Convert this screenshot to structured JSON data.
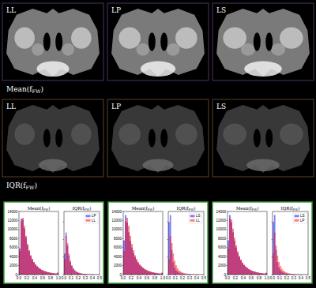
{
  "image_panels": [
    {
      "labels": [
        "LL",
        "LP",
        "LS"
      ],
      "caption": {
        "text": "Mean(f",
        "sub": "FW",
        "tail": ")"
      }
    },
    {
      "labels": [
        "LL",
        "LP",
        "LS"
      ],
      "caption": {
        "text": "IQR(f",
        "sub": "FW",
        "tail": ")"
      }
    }
  ],
  "chart_data": [
    {
      "type": "histogram",
      "title": {
        "text": "Mean(f",
        "sub": "FW",
        "tail": ")"
      },
      "bins": [
        0,
        0.04,
        0.08,
        0.12,
        0.16,
        0.2,
        0.24,
        0.28,
        0.32,
        0.36,
        0.4,
        0.44,
        0.48,
        0.52,
        0.56,
        0.6,
        0.64,
        0.68,
        0.72,
        0.76,
        0.8,
        0.84,
        0.88,
        0.92,
        0.96,
        1
      ],
      "series": [
        {
          "name": "LP",
          "color": "#0000ff",
          "values": [
            5800,
            12400,
            12200,
            10200,
            8200,
            6500,
            5200,
            4150,
            3350,
            2700,
            2200,
            1820,
            1500,
            1250,
            1040,
            870,
            730,
            620,
            520,
            440,
            370,
            320,
            270,
            230,
            400
          ]
        },
        {
          "name": "LL",
          "color": "#ff0000",
          "values": [
            5200,
            11800,
            12600,
            10800,
            8600,
            6800,
            5400,
            4300,
            3500,
            2800,
            2300,
            1900,
            1550,
            1300,
            1080,
            900,
            760,
            640,
            540,
            460,
            390,
            330,
            280,
            240,
            420
          ]
        }
      ],
      "xlim": [
        0,
        1
      ],
      "xticks": [
        {
          "value": 0,
          "label": "0.0"
        },
        {
          "value": 0.2,
          "label": "0.2"
        },
        {
          "value": 0.4,
          "label": "0.4"
        },
        {
          "value": 0.6,
          "label": "0.6"
        },
        {
          "value": 0.8,
          "label": "0.8"
        },
        {
          "value": 1,
          "label": "1.0"
        }
      ],
      "ylim": [
        0,
        14000
      ],
      "yticks": [
        0,
        2000,
        4000,
        6000,
        8000,
        10000,
        12000,
        14000
      ]
    },
    {
      "type": "histogram",
      "title": {
        "text": "IQR(f",
        "sub": "FW",
        "tail": ")"
      },
      "bins": [
        0,
        0.02,
        0.04,
        0.06,
        0.08,
        0.1,
        0.12,
        0.14,
        0.16,
        0.18,
        0.2,
        0.22,
        0.24,
        0.26,
        0.28,
        0.3,
        0.32,
        0.34,
        0.36,
        0.38,
        0.4,
        0.42,
        0.44,
        0.46,
        0.48,
        0.5
      ],
      "series": [
        {
          "name": "LP",
          "color": "#0000ff",
          "values": [
            12000,
            24000,
            16500,
            10800,
            7200,
            4900,
            3400,
            2400,
            1750,
            1300,
            980,
            750,
            580,
            450,
            360,
            285,
            225,
            180,
            145,
            115,
            95,
            76,
            62,
            52,
            43
          ]
        },
        {
          "name": "LL",
          "color": "#ff0000",
          "values": [
            9000,
            22000,
            18000,
            12000,
            8000,
            5400,
            3700,
            2600,
            1900,
            1400,
            1050,
            800,
            620,
            480,
            380,
            300,
            240,
            190,
            150,
            120,
            100,
            80,
            65,
            55,
            45
          ]
        }
      ],
      "xlim": [
        0,
        0.5
      ],
      "xticks": [
        {
          "value": 0,
          "label": "0.0"
        },
        {
          "value": 0.1,
          "label": "0.1"
        },
        {
          "value": 0.2,
          "label": "0.2"
        },
        {
          "value": 0.3,
          "label": "0.3"
        },
        {
          "value": 0.4,
          "label": "0.4"
        },
        {
          "value": 0.5,
          "label": "0.5"
        }
      ],
      "ylim": [
        0,
        36000
      ],
      "yticks": [
        0,
        10000,
        20000,
        30000
      ],
      "tick_labels": "x",
      "legend": "upper right"
    },
    {
      "type": "histogram",
      "title": {
        "text": "Mean(f",
        "sub": "FW",
        "tail": ")"
      },
      "bins": [
        0,
        0.04,
        0.08,
        0.12,
        0.16,
        0.2,
        0.24,
        0.28,
        0.32,
        0.36,
        0.4,
        0.44,
        0.48,
        0.52,
        0.56,
        0.6,
        0.64,
        0.68,
        0.72,
        0.76,
        0.8,
        0.84,
        0.88,
        0.92,
        0.96,
        1
      ],
      "series": [
        {
          "name": "LS",
          "color": "#0000ff",
          "values": [
            7600,
            13200,
            11600,
            9400,
            7500,
            6000,
            4800,
            3900,
            3150,
            2550,
            2100,
            1750,
            1450,
            1200,
            1000,
            840,
            710,
            600,
            500,
            430,
            360,
            310,
            260,
            220,
            380
          ]
        },
        {
          "name": "LL",
          "color": "#ff0000",
          "values": [
            5200,
            11800,
            12600,
            10800,
            8600,
            6800,
            5400,
            4300,
            3500,
            2800,
            2300,
            1900,
            1550,
            1300,
            1080,
            900,
            760,
            640,
            540,
            460,
            390,
            330,
            280,
            240,
            420
          ]
        }
      ],
      "xlim": [
        0,
        1
      ],
      "xticks": [
        {
          "value": 0,
          "label": "0.0"
        },
        {
          "value": 0.2,
          "label": "0.2"
        },
        {
          "value": 0.4,
          "label": "0.4"
        },
        {
          "value": 0.6,
          "label": "0.6"
        },
        {
          "value": 0.8,
          "label": "0.8"
        },
        {
          "value": 1,
          "label": "1.0"
        }
      ],
      "ylim": [
        0,
        14000
      ],
      "yticks": [
        0,
        2000,
        4000,
        6000,
        8000,
        10000,
        12000,
        14000
      ]
    },
    {
      "type": "histogram",
      "title": {
        "text": "IQR(f",
        "sub": "FW",
        "tail": ")"
      },
      "bins": [
        0,
        0.02,
        0.04,
        0.06,
        0.08,
        0.1,
        0.12,
        0.14,
        0.16,
        0.18,
        0.2,
        0.22,
        0.24,
        0.26,
        0.28,
        0.3,
        0.32,
        0.34,
        0.36,
        0.38,
        0.4,
        0.42,
        0.44,
        0.46,
        0.48,
        0.5
      ],
      "series": [
        {
          "name": "LS",
          "color": "#0000ff",
          "values": [
            30000,
            34000,
            14000,
            7000,
            4000,
            2500,
            1700,
            1200,
            850,
            620,
            460,
            350,
            270,
            210,
            160,
            130,
            100,
            80,
            65,
            52,
            42,
            34,
            28,
            22,
            18
          ]
        },
        {
          "name": "LL",
          "color": "#ff0000",
          "values": [
            9000,
            22000,
            18000,
            12000,
            8000,
            5400,
            3700,
            2600,
            1900,
            1400,
            1050,
            800,
            620,
            480,
            380,
            300,
            240,
            190,
            150,
            120,
            100,
            80,
            65,
            55,
            45
          ]
        }
      ],
      "xlim": [
        0,
        0.5
      ],
      "xticks": [
        {
          "value": 0,
          "label": "0.0"
        },
        {
          "value": 0.1,
          "label": "0.1"
        },
        {
          "value": 0.2,
          "label": "0.2"
        },
        {
          "value": 0.3,
          "label": "0.3"
        },
        {
          "value": 0.4,
          "label": "0.4"
        },
        {
          "value": 0.5,
          "label": "0.5"
        }
      ],
      "ylim": [
        0,
        36000
      ],
      "yticks": [
        0,
        10000,
        20000,
        30000
      ],
      "tick_labels": "x",
      "legend": "upper right"
    },
    {
      "type": "histogram",
      "title": {
        "text": "Mean(f",
        "sub": "FW",
        "tail": ")"
      },
      "bins": [
        0,
        0.04,
        0.08,
        0.12,
        0.16,
        0.2,
        0.24,
        0.28,
        0.32,
        0.36,
        0.4,
        0.44,
        0.48,
        0.52,
        0.56,
        0.6,
        0.64,
        0.68,
        0.72,
        0.76,
        0.8,
        0.84,
        0.88,
        0.92,
        0.96,
        1
      ],
      "series": [
        {
          "name": "LS",
          "color": "#0000ff",
          "values": [
            7600,
            13200,
            11600,
            9400,
            7500,
            6000,
            4800,
            3900,
            3150,
            2550,
            2100,
            1750,
            1450,
            1200,
            1000,
            840,
            710,
            600,
            500,
            430,
            360,
            310,
            260,
            220,
            380
          ]
        },
        {
          "name": "LP",
          "color": "#ff0000",
          "values": [
            5800,
            12400,
            12200,
            10200,
            8200,
            6500,
            5200,
            4150,
            3350,
            2700,
            2200,
            1820,
            1500,
            1250,
            1040,
            870,
            730,
            620,
            520,
            440,
            370,
            320,
            270,
            230,
            400
          ]
        }
      ],
      "xlim": [
        0,
        1
      ],
      "xticks": [
        {
          "value": 0,
          "label": "0.0"
        },
        {
          "value": 0.2,
          "label": "0.2"
        },
        {
          "value": 0.4,
          "label": "0.4"
        },
        {
          "value": 0.6,
          "label": "0.6"
        },
        {
          "value": 0.8,
          "label": "0.8"
        },
        {
          "value": 1,
          "label": "1.0"
        }
      ],
      "ylim": [
        0,
        14000
      ],
      "yticks": [
        0,
        2000,
        4000,
        6000,
        8000,
        10000,
        12000,
        14000
      ]
    },
    {
      "type": "histogram",
      "title": {
        "text": "IQR(f",
        "sub": "FW",
        "tail": ")"
      },
      "bins": [
        0,
        0.02,
        0.04,
        0.06,
        0.08,
        0.1,
        0.12,
        0.14,
        0.16,
        0.18,
        0.2,
        0.22,
        0.24,
        0.26,
        0.28,
        0.3,
        0.32,
        0.34,
        0.36,
        0.38,
        0.4,
        0.42,
        0.44,
        0.46,
        0.48,
        0.5
      ],
      "series": [
        {
          "name": "LS",
          "color": "#0000ff",
          "values": [
            30000,
            34000,
            14000,
            7000,
            4000,
            2500,
            1700,
            1200,
            850,
            620,
            460,
            350,
            270,
            210,
            160,
            130,
            100,
            80,
            65,
            52,
            42,
            34,
            28,
            22,
            18
          ]
        },
        {
          "name": "LP",
          "color": "#ff0000",
          "values": [
            12000,
            24000,
            16500,
            10800,
            7200,
            4900,
            3400,
            2400,
            1750,
            1300,
            980,
            750,
            580,
            450,
            360,
            285,
            225,
            180,
            145,
            115,
            95,
            76,
            62,
            52,
            43
          ]
        }
      ],
      "xlim": [
        0,
        0.5
      ],
      "xticks": [
        {
          "value": 0,
          "label": "0.0"
        },
        {
          "value": 0.1,
          "label": "0.1"
        },
        {
          "value": 0.2,
          "label": "0.2"
        },
        {
          "value": 0.3,
          "label": "0.3"
        },
        {
          "value": 0.4,
          "label": "0.4"
        },
        {
          "value": 0.5,
          "label": "0.5"
        }
      ],
      "ylim": [
        0,
        36000
      ],
      "yticks": [
        0,
        10000,
        20000,
        30000
      ],
      "tick_labels": "x",
      "legend": "upper right"
    }
  ]
}
